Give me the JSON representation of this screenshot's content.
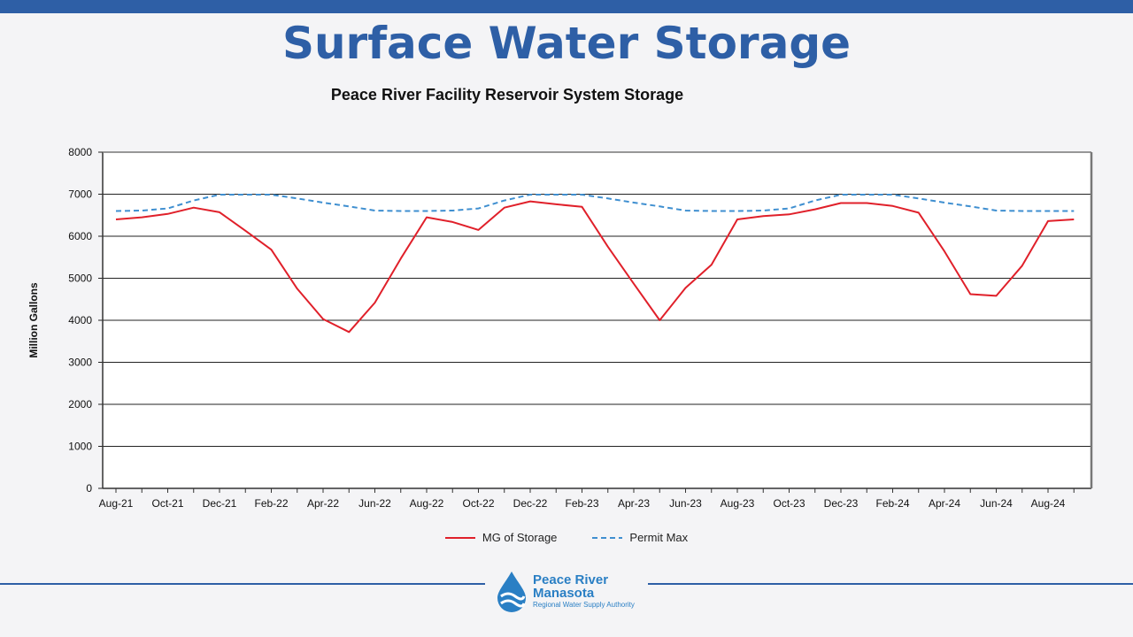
{
  "slide": {
    "title": "Surface Water Storage"
  },
  "colors": {
    "accent": "#2e5fa6",
    "storage": "#e0202a",
    "permit": "#3f8fd0"
  },
  "logo": {
    "line1": "Peace River",
    "line2": "Manasota",
    "tagline": "Regional Water Supply Authority"
  },
  "chart_data": {
    "type": "line",
    "title": "Peace River Facility Reservoir System Storage",
    "ylabel": "Million Gallons",
    "xlabel": "",
    "ylim": [
      0,
      8000
    ],
    "yticks": [
      0,
      1000,
      2000,
      3000,
      4000,
      5000,
      6000,
      7000,
      8000
    ],
    "x": [
      "Aug-21",
      "Sep-21",
      "Oct-21",
      "Nov-21",
      "Dec-21",
      "Jan-22",
      "Feb-22",
      "Mar-22",
      "Apr-22",
      "May-22",
      "Jun-22",
      "Jul-22",
      "Aug-22",
      "Sep-22",
      "Oct-22",
      "Nov-22",
      "Dec-22",
      "Jan-23",
      "Feb-23",
      "Mar-23",
      "Apr-23",
      "May-23",
      "Jun-23",
      "Jul-23",
      "Aug-23",
      "Sep-23",
      "Oct-23",
      "Nov-23",
      "Dec-23",
      "Jan-24",
      "Feb-24",
      "Mar-24",
      "Apr-24",
      "May-24",
      "Jun-24",
      "Jul-24",
      "Aug-24",
      "Sep-24"
    ],
    "xtick_labels": [
      "Aug-21",
      "Oct-21",
      "Dec-21",
      "Feb-22",
      "Apr-22",
      "Jun-22",
      "Aug-22",
      "Oct-22",
      "Dec-22",
      "Feb-23",
      "Apr-23",
      "Jun-23",
      "Aug-23",
      "Oct-23",
      "Dec-23",
      "Feb-24",
      "Apr-24",
      "Jun-24",
      "Aug-24"
    ],
    "grid": true,
    "legend_position": "bottom",
    "series": [
      {
        "name": "MG of Storage",
        "style": "solid",
        "values": [
          6400,
          6450,
          6530,
          6680,
          6570,
          6130,
          5680,
          4750,
          4030,
          3720,
          4420,
          5470,
          6450,
          6340,
          6150,
          6680,
          6830,
          6760,
          6700,
          5750,
          4870,
          4000,
          4770,
          5320,
          6400,
          6480,
          6520,
          6640,
          6790,
          6790,
          6720,
          6560,
          5640,
          4620,
          4580,
          5300,
          6360,
          6400
        ]
      },
      {
        "name": "Permit Max",
        "style": "dashed",
        "values": [
          6600,
          6610,
          6660,
          6850,
          6990,
          6990,
          6990,
          6900,
          6800,
          6710,
          6610,
          6600,
          6600,
          6610,
          6660,
          6850,
          6990,
          6990,
          6990,
          6900,
          6800,
          6710,
          6610,
          6600,
          6600,
          6610,
          6660,
          6850,
          6990,
          6990,
          6990,
          6900,
          6800,
          6710,
          6610,
          6600,
          6600,
          6600
        ]
      }
    ]
  }
}
